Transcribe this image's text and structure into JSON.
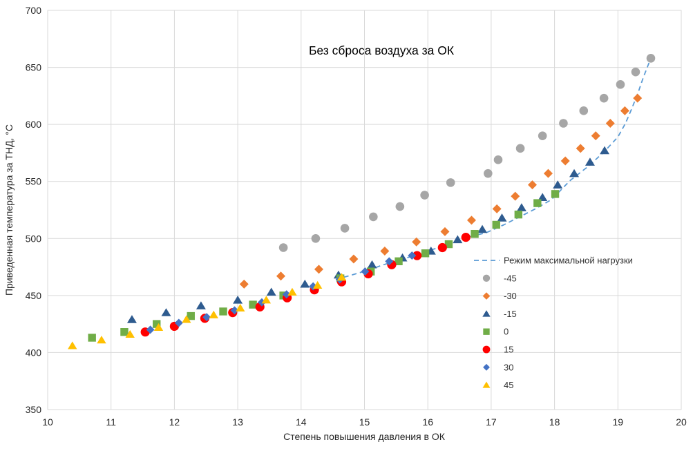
{
  "chart_data": {
    "type": "scatter",
    "title": "Без сброса воздуха за ОК",
    "xlabel": "Степень повышения давления в ОК",
    "ylabel": "Приведенная температура за ТНД, °C",
    "xlim": [
      10,
      20
    ],
    "ylim": [
      350,
      700
    ],
    "x_ticks": [
      10,
      11,
      12,
      13,
      14,
      15,
      16,
      17,
      18,
      19,
      20
    ],
    "y_ticks": [
      350,
      400,
      450,
      500,
      550,
      600,
      650,
      700
    ],
    "grid": true,
    "grid_color": "#d9d9d9",
    "legend_position": "inside-right",
    "series": [
      {
        "id": "max-load-line",
        "name": "Режим максимальной нагрузки",
        "type": "line",
        "style": "dashed",
        "marker": "none",
        "color": "#5b9bd5",
        "size": 0,
        "points": [
          [
            14.55,
            464
          ],
          [
            14.8,
            468
          ],
          [
            15.05,
            472
          ],
          [
            15.3,
            477
          ],
          [
            15.55,
            481
          ],
          [
            15.78,
            485
          ],
          [
            16.05,
            490
          ],
          [
            16.35,
            495
          ],
          [
            16.62,
            501
          ],
          [
            16.92,
            505
          ],
          [
            17.2,
            512
          ],
          [
            17.45,
            519
          ],
          [
            17.7,
            526
          ],
          [
            17.95,
            534
          ],
          [
            18.25,
            551
          ],
          [
            18.55,
            564
          ],
          [
            18.8,
            577
          ],
          [
            19.0,
            589
          ],
          [
            19.12,
            601
          ],
          [
            19.22,
            614
          ],
          [
            19.32,
            628
          ],
          [
            19.4,
            641
          ],
          [
            19.47,
            651
          ],
          [
            19.52,
            658
          ]
        ]
      },
      {
        "id": "t-minus-45",
        "name": "-45",
        "type": "scatter",
        "marker": "circle",
        "color": "#a6a6a6",
        "size": 6.3,
        "points": [
          [
            13.72,
            492
          ],
          [
            14.23,
            500
          ],
          [
            14.69,
            509
          ],
          [
            15.14,
            519
          ],
          [
            15.56,
            528
          ],
          [
            15.95,
            538
          ],
          [
            16.36,
            549
          ],
          [
            16.95,
            557
          ],
          [
            17.11,
            569
          ],
          [
            17.46,
            579
          ],
          [
            17.81,
            590
          ],
          [
            18.14,
            601
          ],
          [
            18.46,
            612
          ],
          [
            18.78,
            623
          ],
          [
            19.04,
            635
          ],
          [
            19.28,
            646
          ],
          [
            19.52,
            658
          ]
        ]
      },
      {
        "id": "t-minus-30",
        "name": "-30",
        "type": "scatter",
        "marker": "diamond",
        "color": "#ed7d31",
        "size": 6.5,
        "points": [
          [
            13.1,
            460
          ],
          [
            13.68,
            467
          ],
          [
            14.28,
            473
          ],
          [
            14.83,
            482
          ],
          [
            15.32,
            489
          ],
          [
            15.82,
            497
          ],
          [
            16.27,
            506
          ],
          [
            16.69,
            516
          ],
          [
            17.09,
            526
          ],
          [
            17.38,
            537
          ],
          [
            17.65,
            547
          ],
          [
            17.9,
            557
          ],
          [
            18.17,
            568
          ],
          [
            18.41,
            579
          ],
          [
            18.65,
            590
          ],
          [
            18.88,
            601
          ],
          [
            19.11,
            612
          ],
          [
            19.31,
            623
          ]
        ]
      },
      {
        "id": "t-minus-15",
        "name": "-15",
        "type": "scatter",
        "marker": "triangle",
        "color": "#2e5b8f",
        "size": 7,
        "points": [
          [
            11.33,
            429
          ],
          [
            11.87,
            435
          ],
          [
            12.42,
            441
          ],
          [
            13.0,
            446
          ],
          [
            13.53,
            453
          ],
          [
            14.06,
            460
          ],
          [
            14.59,
            468
          ],
          [
            15.12,
            477
          ],
          [
            15.6,
            483
          ],
          [
            16.05,
            489
          ],
          [
            16.47,
            499
          ],
          [
            16.86,
            508
          ],
          [
            17.17,
            518
          ],
          [
            17.48,
            527
          ],
          [
            17.81,
            536
          ],
          [
            18.05,
            547
          ],
          [
            18.31,
            557
          ],
          [
            18.56,
            567
          ],
          [
            18.79,
            577
          ]
        ]
      },
      {
        "id": "t-0",
        "name": "0",
        "type": "scatter",
        "marker": "square",
        "color": "#70ad47",
        "size": 5.7,
        "points": [
          [
            10.7,
            413
          ],
          [
            11.21,
            418
          ],
          [
            11.72,
            425
          ],
          [
            12.26,
            432
          ],
          [
            12.77,
            436
          ],
          [
            13.24,
            442
          ],
          [
            13.72,
            450
          ],
          [
            14.62,
            465
          ],
          [
            15.1,
            471
          ],
          [
            15.54,
            480
          ],
          [
            15.96,
            487
          ],
          [
            16.33,
            495
          ],
          [
            16.74,
            504
          ],
          [
            17.08,
            512
          ],
          [
            17.43,
            521
          ],
          [
            17.73,
            531
          ],
          [
            18.01,
            539
          ]
        ]
      },
      {
        "id": "t-15",
        "name": "15",
        "type": "scatter",
        "marker": "circle",
        "color": "#ff0000",
        "size": 6.6,
        "points": [
          [
            11.54,
            418
          ],
          [
            12.0,
            423
          ],
          [
            12.48,
            430
          ],
          [
            12.92,
            435
          ],
          [
            13.35,
            440
          ],
          [
            13.78,
            448
          ],
          [
            14.21,
            455
          ],
          [
            14.64,
            462
          ],
          [
            15.06,
            469
          ],
          [
            15.43,
            477
          ],
          [
            15.83,
            485
          ],
          [
            16.23,
            492
          ],
          [
            16.6,
            501
          ]
        ]
      },
      {
        "id": "t-30",
        "name": "30",
        "type": "scatter",
        "marker": "diamond",
        "color": "#4472c4",
        "size": 6,
        "points": [
          [
            11.62,
            420
          ],
          [
            12.07,
            426
          ],
          [
            12.51,
            431
          ],
          [
            12.95,
            437
          ],
          [
            13.38,
            444
          ],
          [
            13.77,
            451
          ],
          [
            14.19,
            458
          ],
          [
            14.61,
            464
          ],
          [
            15.01,
            471
          ],
          [
            15.39,
            480
          ],
          [
            15.75,
            485
          ]
        ]
      },
      {
        "id": "t-45",
        "name": "45",
        "type": "scatter",
        "marker": "triangle",
        "color": "#ffc000",
        "size": 6.7,
        "points": [
          [
            10.39,
            406
          ],
          [
            10.85,
            411
          ],
          [
            11.3,
            416
          ],
          [
            11.75,
            422
          ],
          [
            12.19,
            429
          ],
          [
            12.62,
            433
          ],
          [
            13.04,
            439
          ],
          [
            13.45,
            446
          ],
          [
            13.86,
            453
          ],
          [
            14.26,
            459
          ],
          [
            14.64,
            466
          ]
        ]
      }
    ]
  }
}
